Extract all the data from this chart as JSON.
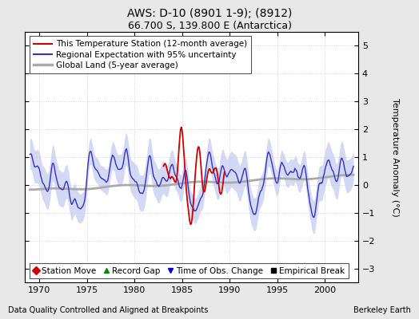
{
  "title": "AWS: D-10 (8901 1-9); (8912)",
  "subtitle": "66.700 S, 139.800 E (Antarctica)",
  "xlabel_left": "Data Quality Controlled and Aligned at Breakpoints",
  "xlabel_right": "Berkeley Earth",
  "ylabel": "Temperature Anomaly (°C)",
  "xlim": [
    1968.5,
    2003.5
  ],
  "ylim": [
    -3.5,
    5.5
  ],
  "yticks": [
    -3,
    -2,
    -1,
    0,
    1,
    2,
    3,
    4,
    5
  ],
  "xticks": [
    1970,
    1975,
    1980,
    1985,
    1990,
    1995,
    2000
  ],
  "bg_color": "#e8e8e8",
  "plot_bg_color": "#ffffff",
  "regional_color": "#3333bb",
  "regional_fill": "#b0b8ee",
  "station_color": "#cc0000",
  "global_color": "#aaaaaa",
  "legend_items": [
    {
      "label": "This Temperature Station (12-month average)",
      "color": "#cc0000",
      "lw": 1.5
    },
    {
      "label": "Regional Expectation with 95% uncertainty",
      "color": "#3333bb",
      "lw": 1.5
    },
    {
      "label": "Global Land (5-year average)",
      "color": "#aaaaaa",
      "lw": 2.5
    }
  ],
  "marker_legend": [
    {
      "label": "Station Move",
      "marker": "D",
      "color": "#cc0000"
    },
    {
      "label": "Record Gap",
      "marker": "^",
      "color": "#008800"
    },
    {
      "label": "Time of Obs. Change",
      "marker": "v",
      "color": "#0000cc"
    },
    {
      "label": "Empirical Break",
      "marker": "s",
      "color": "#000000"
    }
  ],
  "title_fontsize": 10,
  "subtitle_fontsize": 9,
  "tick_fontsize": 8,
  "legend_fontsize": 7.5
}
